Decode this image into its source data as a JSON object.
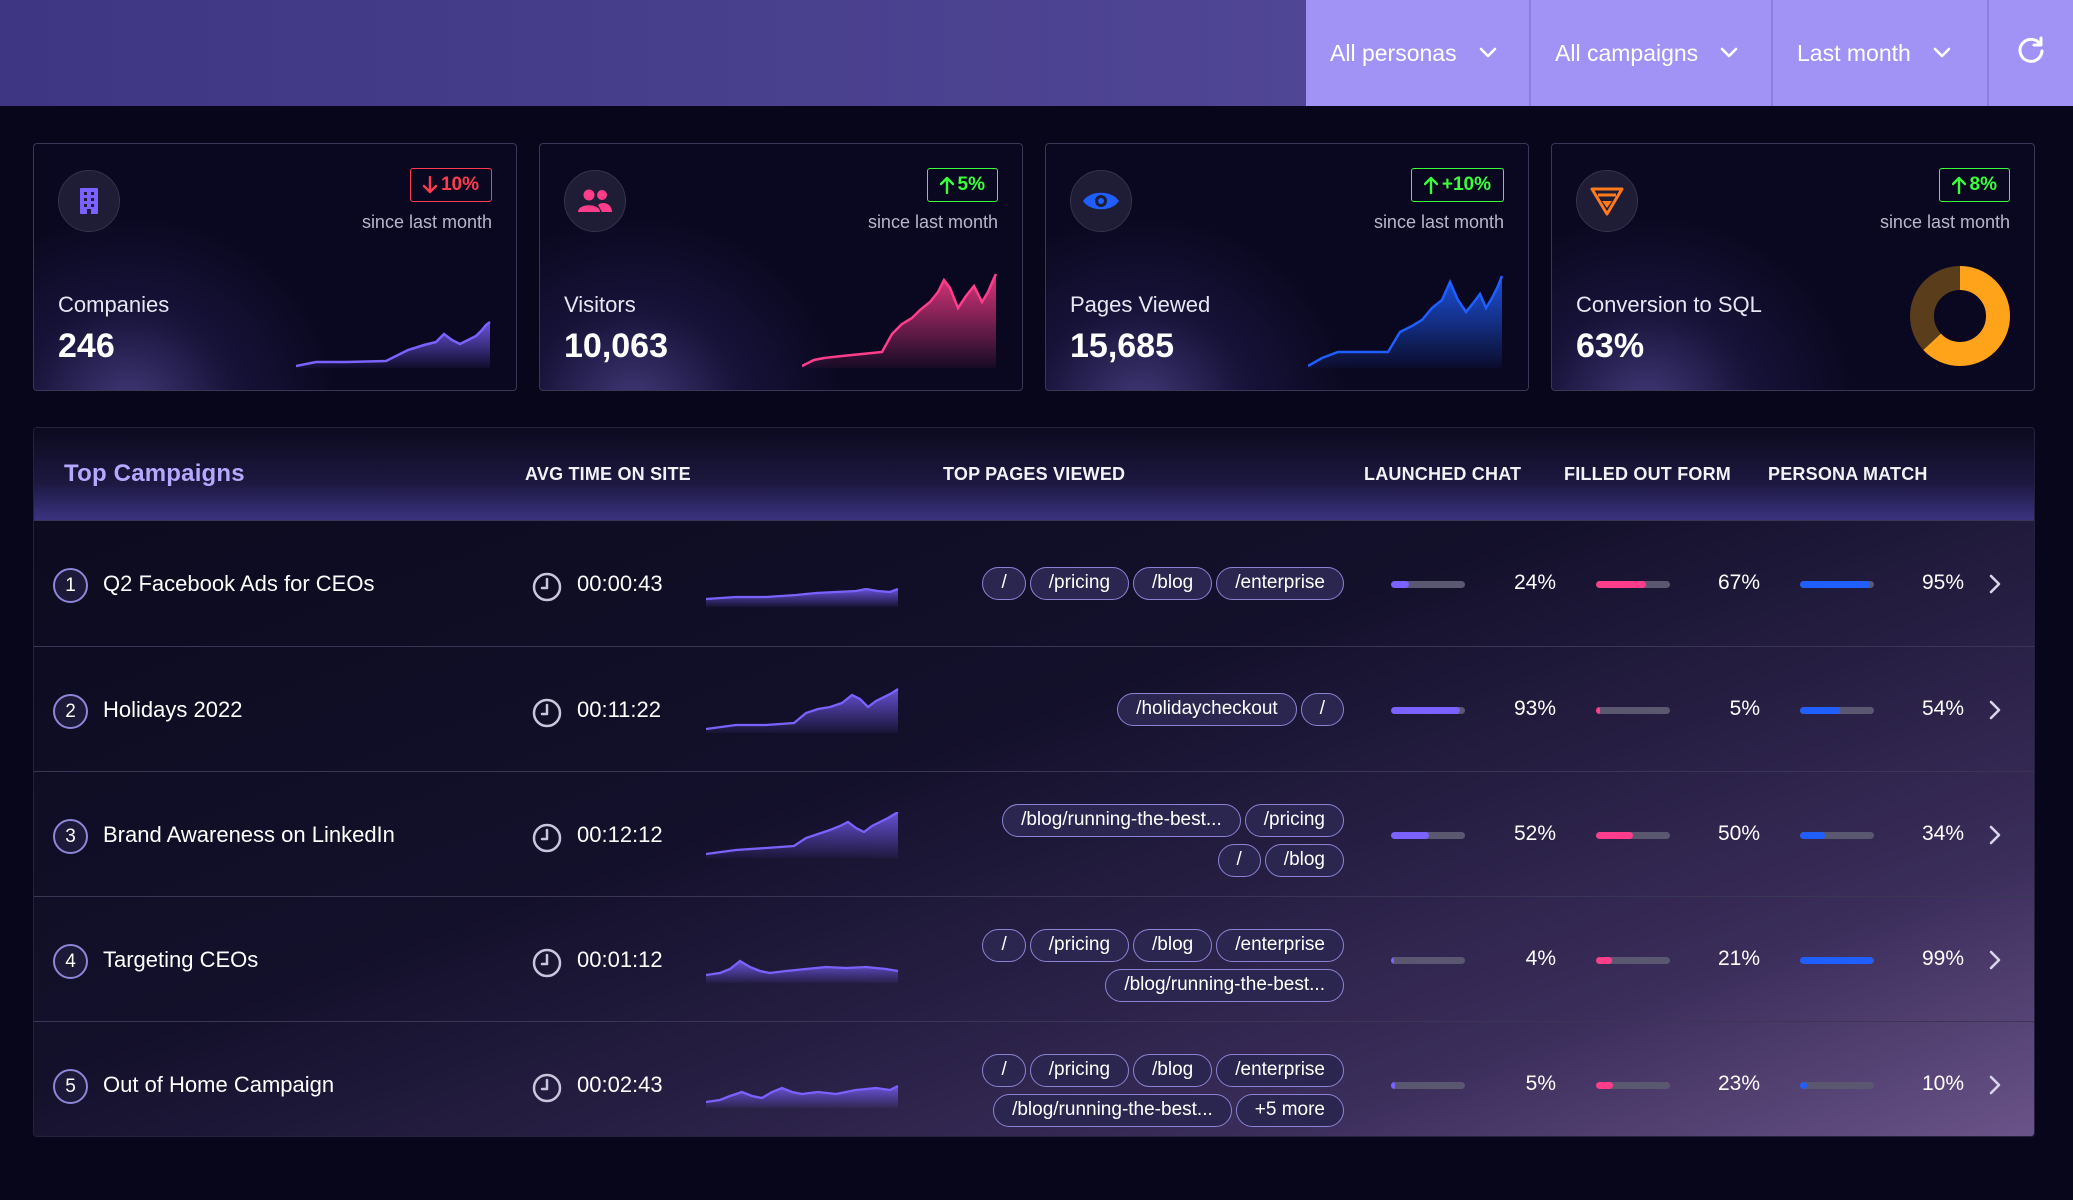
{
  "filters": [
    {
      "label": "All personas"
    },
    {
      "label": "All campaigns"
    },
    {
      "label": "Last month"
    }
  ],
  "icons": {
    "refresh": "refresh-icon",
    "chevron": "chevron-down-icon"
  },
  "cards": [
    {
      "label": "Companies",
      "value": "246",
      "change": "10%",
      "direction": "down",
      "since": "since last month",
      "icon": "building-icon",
      "color": "#7b61ff"
    },
    {
      "label": "Visitors",
      "value": "10,063",
      "change": "5%",
      "direction": "up",
      "since": "since last month",
      "icon": "users-icon",
      "color": "#ff3d8b"
    },
    {
      "label": "Pages Viewed",
      "value": "15,685",
      "change": "+10%",
      "direction": "up",
      "since": "since last month",
      "icon": "eye-icon",
      "color": "#1f5eff"
    },
    {
      "label": "Conversion to SQL",
      "value": "63%",
      "change": "8%",
      "direction": "up",
      "since": "since last month",
      "icon": "funnel-icon",
      "color": "#ffa31a",
      "donut_fraction": 0.63
    }
  ],
  "colors": {
    "purple": "#7b61ff",
    "pink": "#ff3d8b",
    "blue": "#1f5eff",
    "orange": "#ffa31a",
    "up": "#39ff3a",
    "down": "#ff3b4e"
  },
  "table": {
    "title": "Top Campaigns",
    "headers": {
      "avg_time": "AVG TIME ON SITE",
      "top_pages": "TOP PAGES VIEWED",
      "launched_chat": "LAUNCHED CHAT",
      "filled_form": "FILLED OUT FORM",
      "persona_match": "PERSONA MATCH"
    },
    "rows": [
      {
        "num": "1",
        "name": "Q2 Facebook Ads for CEOs",
        "time": "00:00:43",
        "pages": [
          [
            "/",
            "/pricing",
            "/blog",
            "/enterprise"
          ]
        ],
        "chat": "24%",
        "chat_v": 0.24,
        "form": "67%",
        "form_v": 0.67,
        "persona": "95%",
        "persona_v": 0.95
      },
      {
        "num": "2",
        "name": "Holidays 2022",
        "time": "00:11:22",
        "pages": [
          [
            "/holidaycheckout",
            "/"
          ]
        ],
        "chat": "93%",
        "chat_v": 0.93,
        "form": "5%",
        "form_v": 0.05,
        "persona": "54%",
        "persona_v": 0.54
      },
      {
        "num": "3",
        "name": "Brand Awareness on LinkedIn",
        "time": "00:12:12",
        "pages": [
          [
            "/blog/running-the-best...",
            "/pricing"
          ],
          [
            "/",
            "/blog"
          ]
        ],
        "chat": "52%",
        "chat_v": 0.52,
        "form": "50%",
        "form_v": 0.5,
        "persona": "34%",
        "persona_v": 0.34
      },
      {
        "num": "4",
        "name": "Targeting CEOs",
        "time": "00:01:12",
        "pages": [
          [
            "/",
            "/pricing",
            "/blog",
            "/enterprise"
          ],
          [
            "/blog/running-the-best..."
          ]
        ],
        "chat": "4%",
        "chat_v": 0.04,
        "form": "21%",
        "form_v": 0.21,
        "persona": "99%",
        "persona_v": 0.99
      },
      {
        "num": "5",
        "name": "Out of Home Campaign",
        "time": "00:02:43",
        "pages": [
          [
            "/",
            "/pricing",
            "/blog",
            "/enterprise"
          ],
          [
            "/blog/running-the-best...",
            "+5 more"
          ]
        ],
        "chat": "5%",
        "chat_v": 0.05,
        "form": "23%",
        "form_v": 0.23,
        "persona": "10%",
        "persona_v": 0.1
      }
    ]
  }
}
